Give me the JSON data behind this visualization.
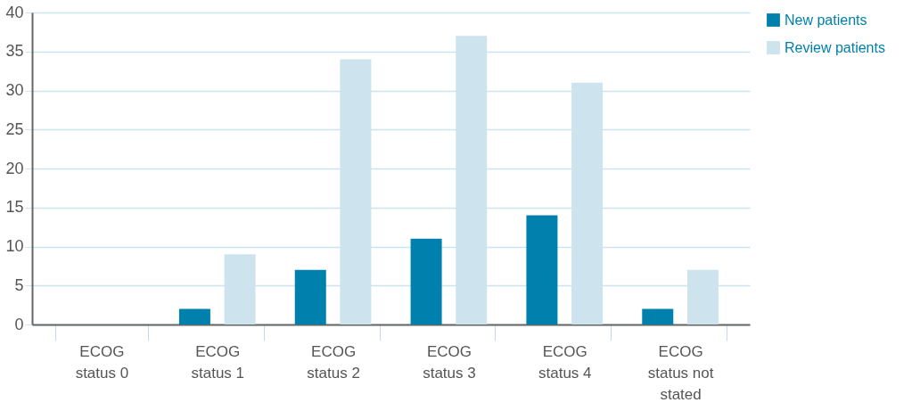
{
  "chart_data": {
    "type": "bar",
    "categories": [
      "ECOG status 0",
      "ECOG status 1",
      "ECOG status 2",
      "ECOG status 3",
      "ECOG status 4",
      "ECOG status not stated"
    ],
    "series": [
      {
        "name": "New patients",
        "color": "#0080ad",
        "values": [
          0,
          2,
          7,
          11,
          14,
          2
        ]
      },
      {
        "name": "Review patients",
        "color": "#cde3ee",
        "values": [
          0,
          9,
          34,
          37,
          31,
          7
        ]
      }
    ],
    "ylim": [
      0,
      40
    ],
    "yticks": [
      0,
      5,
      10,
      15,
      20,
      25,
      30,
      35,
      40
    ],
    "grid": "y",
    "legend": "top right"
  }
}
